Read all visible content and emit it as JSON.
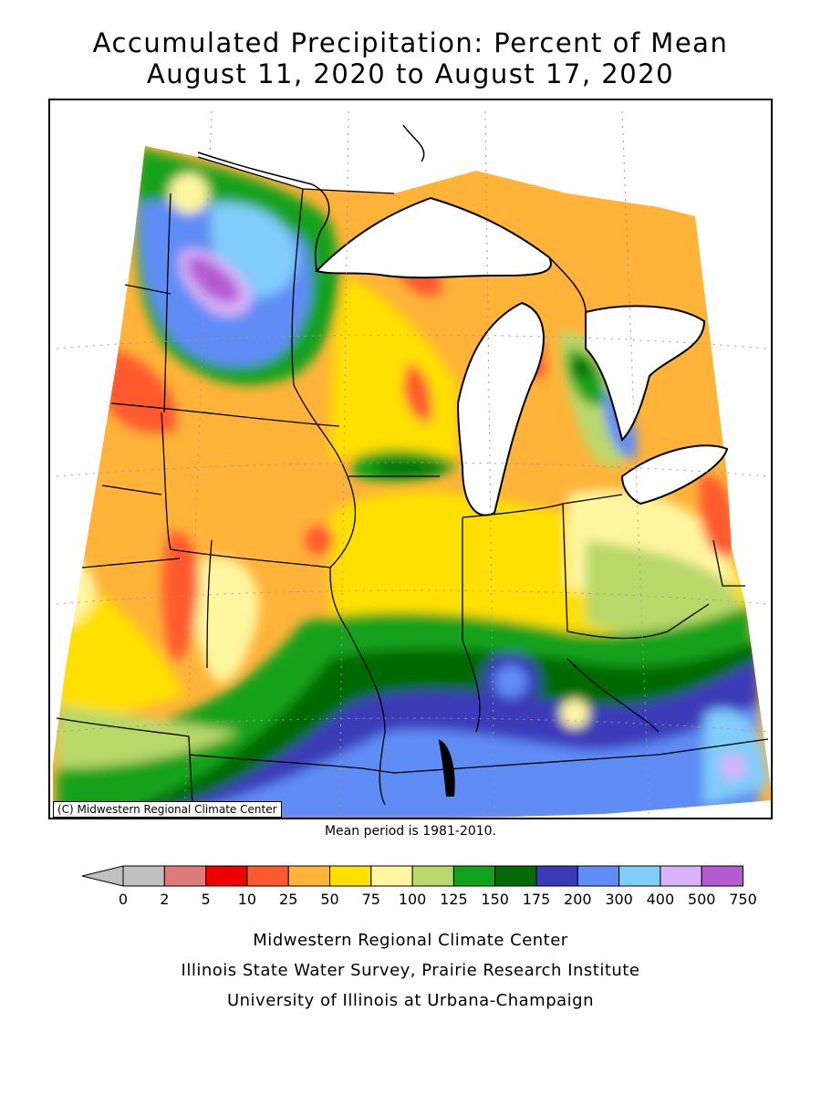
{
  "title": {
    "line1": "Accumulated Precipitation: Percent of Mean",
    "line2": "August 11, 2020 to August 17, 2020"
  },
  "map": {
    "copyright": "(C) Midwestern Regional Climate Center",
    "mean_period": "Mean period is 1981-2010."
  },
  "legend": {
    "bins": [
      {
        "label": "0",
        "color": "#c0c0c0"
      },
      {
        "label": "2",
        "color": "#e07b7b"
      },
      {
        "label": "5",
        "color": "#ee0000"
      },
      {
        "label": "10",
        "color": "#ff5a2e"
      },
      {
        "label": "25",
        "color": "#ffb338"
      },
      {
        "label": "50",
        "color": "#ffe000"
      },
      {
        "label": "75",
        "color": "#fff6a0"
      },
      {
        "label": "100",
        "color": "#b9d86a"
      },
      {
        "label": "125",
        "color": "#13a11c"
      },
      {
        "label": "150",
        "color": "#036b03"
      },
      {
        "label": "175",
        "color": "#3b3bb8"
      },
      {
        "label": "200",
        "color": "#5f8cf5"
      },
      {
        "label": "300",
        "color": "#80ccfa"
      },
      {
        "label": "400",
        "color": "#d8b2fa"
      },
      {
        "label": "500",
        "color": "#b45ad2"
      },
      {
        "label": "750",
        "color": ""
      }
    ]
  },
  "footer": {
    "line1": "Midwestern Regional Climate Center",
    "line2": "Illinois State Water Survey, Prairie Research Institute",
    "line3": "University of Illinois at Urbana-Champaign"
  }
}
